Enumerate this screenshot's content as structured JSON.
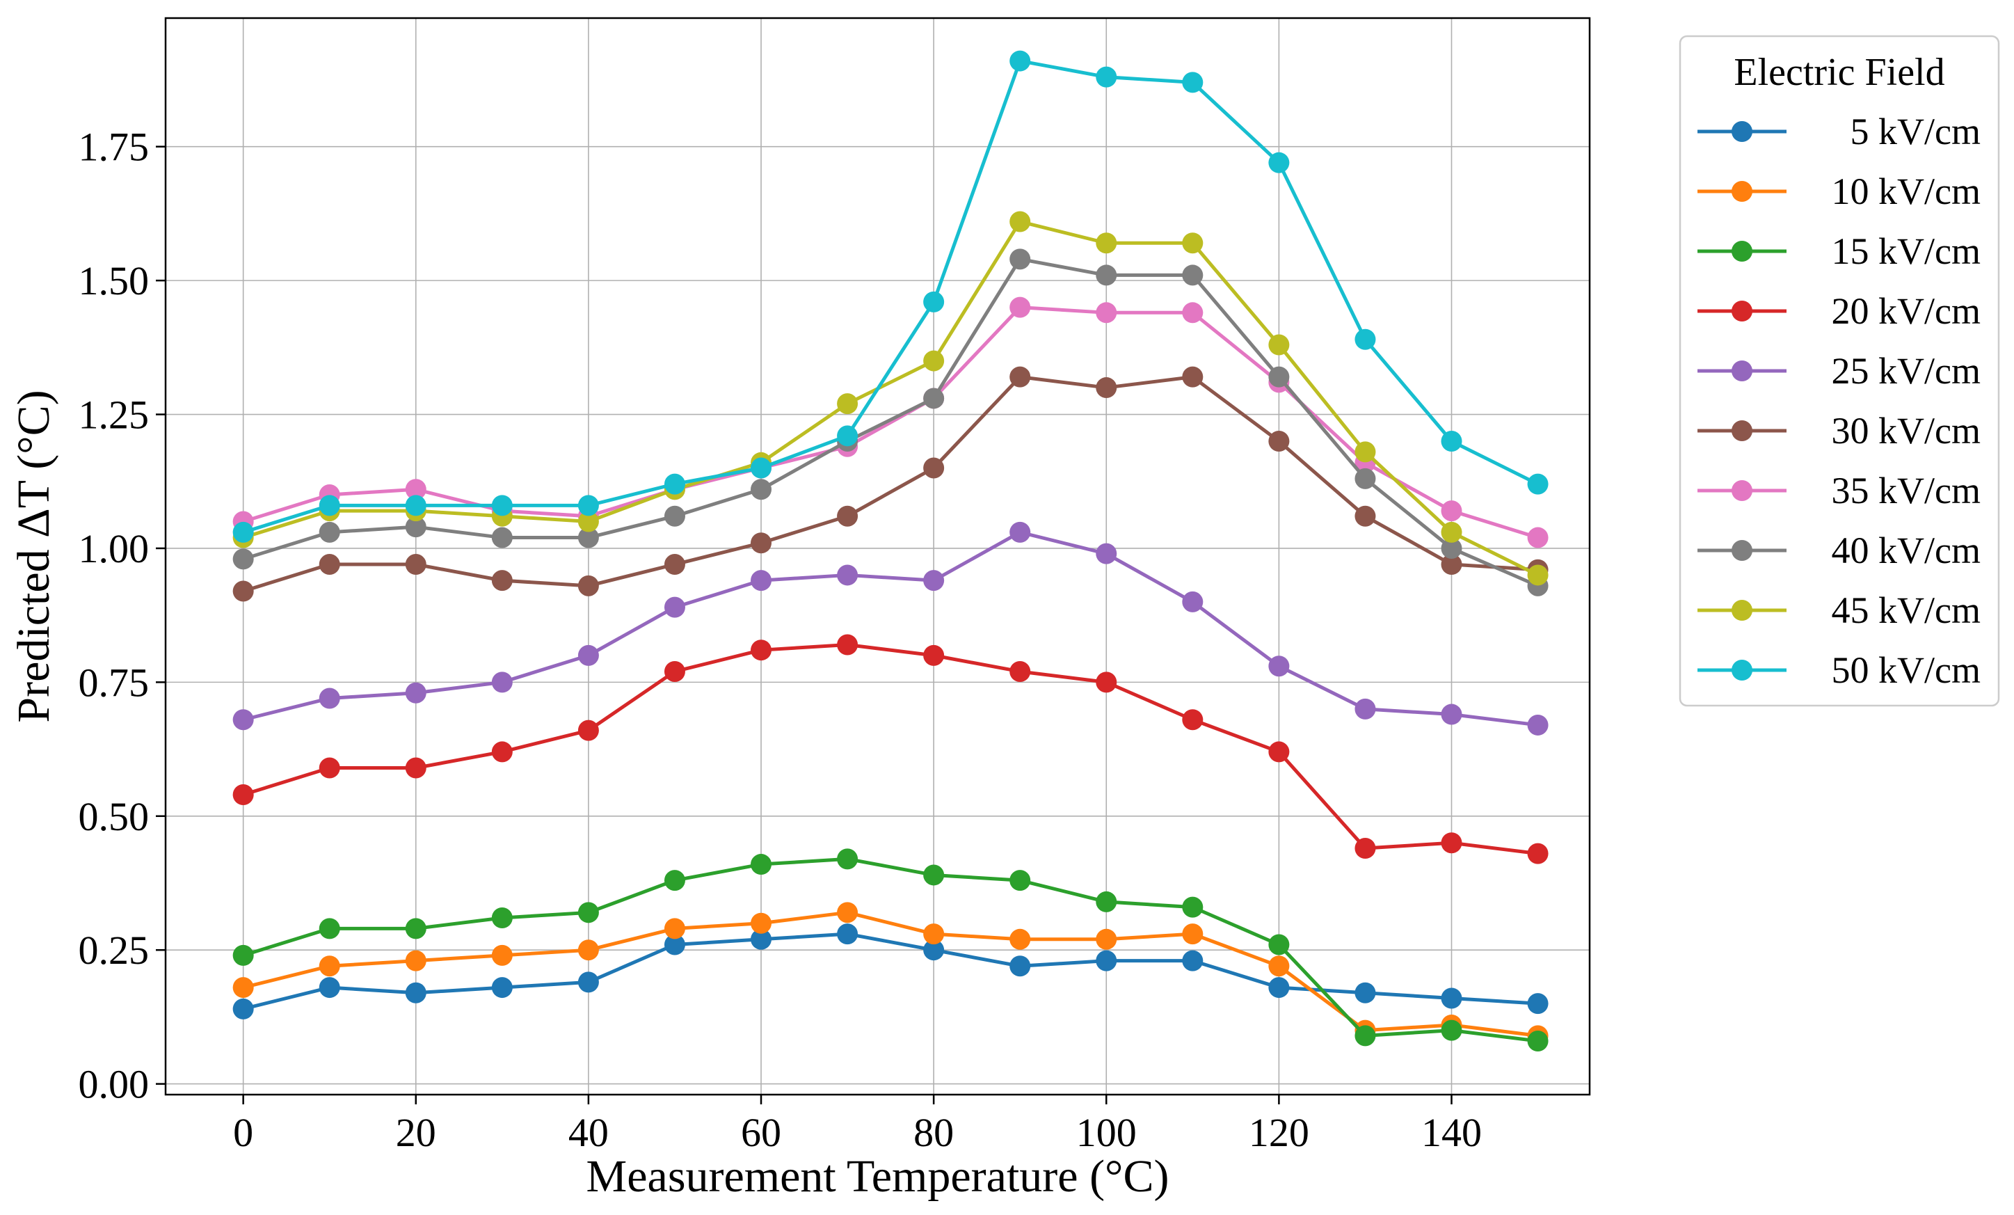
{
  "chart_data": {
    "type": "line",
    "title": "",
    "xlabel": "Measurement Temperature (°C)",
    "ylabel": "Predicted ΔT (°C)",
    "xlim": [
      -9,
      156
    ],
    "ylim": [
      -0.02,
      1.99
    ],
    "xticks": [
      0,
      20,
      40,
      60,
      80,
      100,
      120,
      140
    ],
    "yticks": [
      0.0,
      0.25,
      0.5,
      0.75,
      1.0,
      1.25,
      1.5,
      1.75
    ],
    "ytick_labels": [
      "0.00",
      "0.25",
      "0.50",
      "0.75",
      "1.00",
      "1.25",
      "1.50",
      "1.75"
    ],
    "grid": true,
    "legend": {
      "title": "Electric Field",
      "placement": "outside-right-top"
    },
    "x": [
      0,
      10,
      20,
      30,
      40,
      50,
      60,
      70,
      80,
      90,
      100,
      110,
      120,
      130,
      140,
      150
    ],
    "series": [
      {
        "name": "5 kV/cm",
        "color": "#1f77b4",
        "values": [
          0.14,
          0.18,
          0.17,
          0.18,
          0.19,
          0.26,
          0.27,
          0.28,
          0.25,
          0.22,
          0.23,
          0.23,
          0.18,
          0.17,
          0.16,
          0.15
        ]
      },
      {
        "name": "10 kV/cm",
        "color": "#ff7f0e",
        "values": [
          0.18,
          0.22,
          0.23,
          0.24,
          0.25,
          0.29,
          0.3,
          0.32,
          0.28,
          0.27,
          0.27,
          0.28,
          0.22,
          0.1,
          0.11,
          0.09
        ]
      },
      {
        "name": "15 kV/cm",
        "color": "#2ca02c",
        "values": [
          0.24,
          0.29,
          0.29,
          0.31,
          0.32,
          0.38,
          0.41,
          0.42,
          0.39,
          0.38,
          0.34,
          0.33,
          0.26,
          0.09,
          0.1,
          0.08
        ]
      },
      {
        "name": "20 kV/cm",
        "color": "#d62728",
        "values": [
          0.54,
          0.59,
          0.59,
          0.62,
          0.66,
          0.77,
          0.81,
          0.82,
          0.8,
          0.77,
          0.75,
          0.68,
          0.62,
          0.44,
          0.45,
          0.43
        ]
      },
      {
        "name": "25 kV/cm",
        "color": "#9467bd",
        "values": [
          0.68,
          0.72,
          0.73,
          0.75,
          0.8,
          0.89,
          0.94,
          0.95,
          0.94,
          1.03,
          0.99,
          0.9,
          0.78,
          0.7,
          0.69,
          0.67
        ]
      },
      {
        "name": "30 kV/cm",
        "color": "#8c564b",
        "values": [
          0.92,
          0.97,
          0.97,
          0.94,
          0.93,
          0.97,
          1.01,
          1.06,
          1.15,
          1.32,
          1.3,
          1.32,
          1.2,
          1.06,
          0.97,
          0.96
        ]
      },
      {
        "name": "35 kV/cm",
        "color": "#e377c2",
        "values": [
          1.05,
          1.1,
          1.11,
          1.07,
          1.06,
          1.11,
          1.15,
          1.19,
          1.28,
          1.45,
          1.44,
          1.44,
          1.31,
          1.16,
          1.07,
          1.02
        ]
      },
      {
        "name": "40 kV/cm",
        "color": "#7f7f7f",
        "values": [
          0.98,
          1.03,
          1.04,
          1.02,
          1.02,
          1.06,
          1.11,
          1.2,
          1.28,
          1.54,
          1.51,
          1.51,
          1.32,
          1.13,
          1.0,
          0.93
        ]
      },
      {
        "name": "45 kV/cm",
        "color": "#bcbd22",
        "values": [
          1.02,
          1.07,
          1.07,
          1.06,
          1.05,
          1.11,
          1.16,
          1.27,
          1.35,
          1.61,
          1.57,
          1.57,
          1.38,
          1.18,
          1.03,
          0.95
        ]
      },
      {
        "name": "50 kV/cm",
        "color": "#17becf",
        "values": [
          1.03,
          1.08,
          1.08,
          1.08,
          1.08,
          1.12,
          1.15,
          1.21,
          1.46,
          1.91,
          1.88,
          1.87,
          1.72,
          1.39,
          1.2,
          1.12
        ]
      }
    ]
  }
}
